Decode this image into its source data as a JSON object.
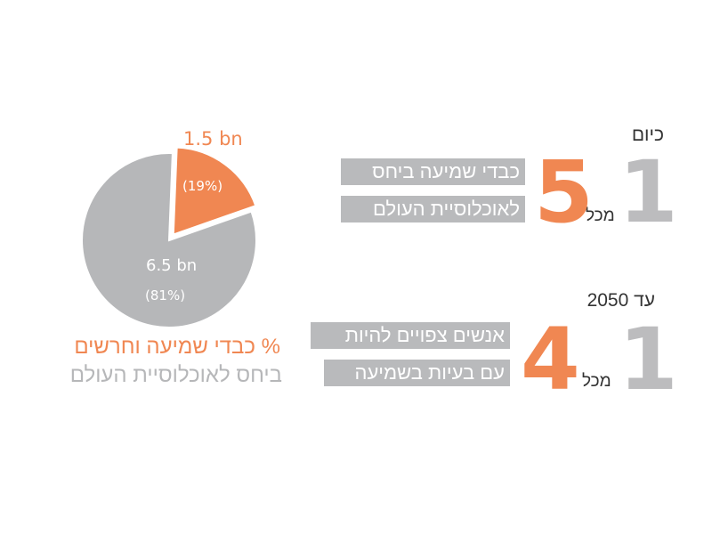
{
  "chart_data": {
    "type": "pie",
    "slices": [
      {
        "label": "1.5 bn",
        "percent_label": "(19%)",
        "value": 19,
        "color": "#f08752"
      },
      {
        "label": "6.5 bn",
        "percent_label": "(81%)",
        "value": 81,
        "color": "#b6b7b9"
      }
    ],
    "legend": [
      {
        "text": "% כבדי שמיעה וחרשים",
        "color": "#f08752"
      },
      {
        "text": "ביחס לאוכלוסיית העולם",
        "color": "#b6b7b9"
      }
    ]
  },
  "stats": [
    {
      "title": "כיום",
      "big_number": "1",
      "of_label": "מכל",
      "highlight_number": "5",
      "text_lines": [
        "כבדי שמיעה ביחס",
        "לאוכלוסיית העולם"
      ]
    },
    {
      "title": "עד 2050",
      "big_number": "1",
      "of_label": "מכל",
      "highlight_number": "4",
      "text_lines": [
        "אנשים צפויים להיות",
        "עם בעיות בשמיעה"
      ]
    }
  ]
}
